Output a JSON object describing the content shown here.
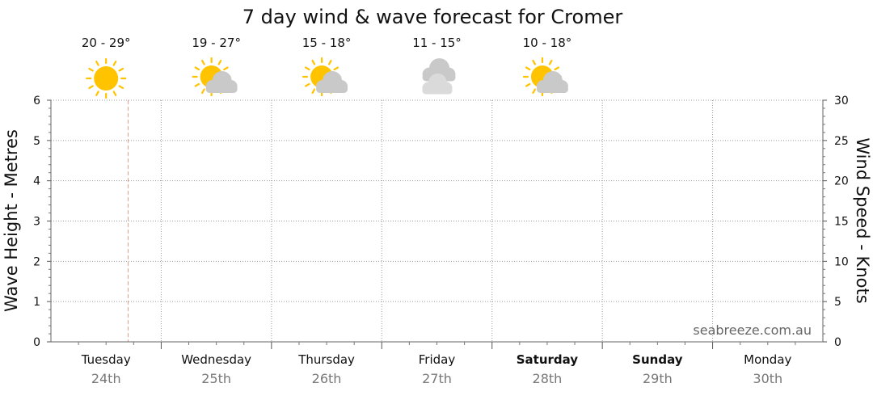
{
  "chart_data": {
    "type": "line",
    "title": "7 day wind & wave forecast for Cromer",
    "ylabel_left": "Wave Height - Metres",
    "ylabel_right": "Wind Speed - Knots",
    "ylim_left": [
      0,
      6
    ],
    "ylim_right": [
      0,
      30
    ],
    "yticks_left": [
      "0",
      "1",
      "2",
      "3",
      "4",
      "5",
      "6"
    ],
    "yticks_right": [
      "0",
      "5",
      "10",
      "15",
      "20",
      "25",
      "30"
    ],
    "grid": true,
    "days": [
      {
        "name": "Tuesday",
        "date": "24th",
        "bold": false
      },
      {
        "name": "Wednesday",
        "date": "25th",
        "bold": false
      },
      {
        "name": "Thursday",
        "date": "26th",
        "bold": false
      },
      {
        "name": "Friday",
        "date": "27th",
        "bold": false
      },
      {
        "name": "Saturday",
        "date": "28th",
        "bold": true
      },
      {
        "name": "Sunday",
        "date": "29th",
        "bold": true
      },
      {
        "name": "Monday",
        "date": "30th",
        "bold": false
      }
    ],
    "forecasts": [
      {
        "temp": "20 - 29°",
        "icon": "sunny-icon"
      },
      {
        "temp": "19 - 27°",
        "icon": "partly-cloudy-icon"
      },
      {
        "temp": "15 - 18°",
        "icon": "partly-cloudy-icon"
      },
      {
        "temp": "11 - 15°",
        "icon": "cloudy-icon"
      },
      {
        "temp": "10 - 18°",
        "icon": "partly-cloudy-icon"
      }
    ],
    "current_time_marker": {
      "day": "Tuesday",
      "fraction_of_day": 0.7
    },
    "series": []
  },
  "watermark": "seabreeze.com.au",
  "colors": {
    "sun": "#FFC300",
    "sun_rays": "#FFC300",
    "cloud": "#C9C9C9",
    "cloud_light": "#DADADA",
    "now_line": "#E8A090",
    "grid": "#9a9a9a"
  }
}
